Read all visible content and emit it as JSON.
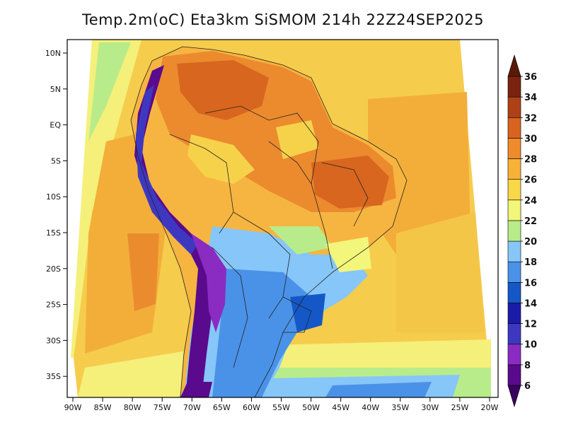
{
  "title": "Temp.2m(oC) Eta3km SiSMOM 214h 22Z24SEP2025",
  "map": {
    "variable": "2 m temperature",
    "units": "oC",
    "lat_labels": [
      "10N",
      "5N",
      "EQ",
      "5S",
      "10S",
      "15S",
      "20S",
      "25S",
      "30S",
      "35S"
    ],
    "lon_labels": [
      "90W",
      "85W",
      "80W",
      "75W",
      "70W",
      "65W",
      "60W",
      "55W",
      "50W",
      "45W",
      "40W",
      "35W",
      "30W",
      "25W",
      "20W"
    ]
  },
  "colorbar": {
    "labels": [
      "6",
      "8",
      "10",
      "12",
      "14",
      "16",
      "18",
      "20",
      "22",
      "24",
      "26",
      "28",
      "30",
      "32",
      "34",
      "36"
    ],
    "colors": [
      "#5a0a8c",
      "#8a2bc2",
      "#3e38c0",
      "#1a1ca8",
      "#1458c8",
      "#4a92e8",
      "#86c6f8",
      "#b8ec8a",
      "#f2f67a",
      "#f8d848",
      "#f8b238",
      "#ee8c2c",
      "#d86420",
      "#ae4216",
      "#7a2410"
    ],
    "arrow_low_color": "#3a0060",
    "arrow_high_color": "#5a1a08"
  }
}
